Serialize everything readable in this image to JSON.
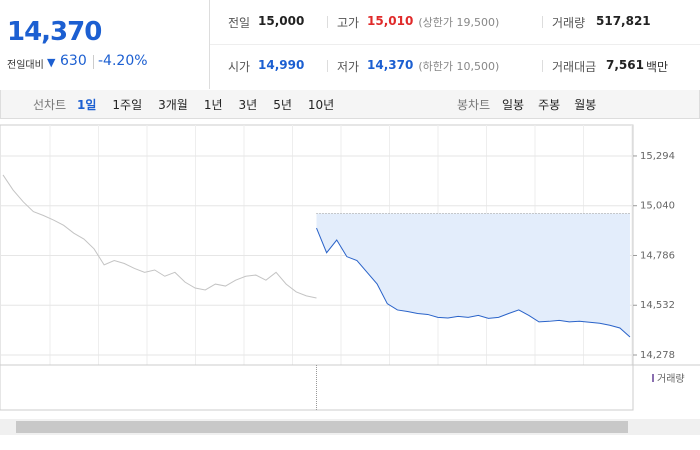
{
  "header": {
    "price": "14,370",
    "change_label": "전일대비",
    "change": "630",
    "change_rate": "-4.20%"
  },
  "summary": [
    {
      "label": "전일",
      "value": "15,000",
      "color": "#222"
    },
    {
      "label": "고가",
      "value": "15,010",
      "note": "(상한가 19,500)",
      "color": "#e02a2a"
    },
    {
      "label": "거래량",
      "value": "517,821",
      "color": "#222"
    },
    {
      "label": "시가",
      "value": "14,990",
      "color": "#1c5fd1"
    },
    {
      "label": "저가",
      "value": "14,370",
      "note": "(하한가 10,500)",
      "color": "#1c5fd1"
    },
    {
      "label": "거래대금",
      "value": "7,561",
      "unit": "백만",
      "color": "#222"
    }
  ],
  "tabs": {
    "line_label": "선차트",
    "line": [
      "1일",
      "1주일",
      "3개월",
      "1년",
      "3년",
      "5년",
      "10년"
    ],
    "selected": 0,
    "candle_label": "봉차트",
    "candle": [
      "일봉",
      "주봉",
      "월봉"
    ]
  },
  "chart_data": {
    "type": "line",
    "series": [
      {
        "color": "#c4c4c4",
        "values": [
          15197,
          15120,
          15060,
          15010,
          14990,
          14967,
          14940,
          14900,
          14870,
          14820,
          14738,
          14760,
          14745,
          14720,
          14700,
          14712,
          14680,
          14700,
          14650,
          14620,
          14610,
          14640,
          14630,
          14660,
          14680,
          14686,
          14660,
          14700,
          14640,
          14600,
          14580,
          14569,
          null,
          null,
          null,
          null,
          null,
          null,
          null,
          null,
          null,
          null,
          null,
          null,
          null,
          null,
          null,
          null,
          null,
          null,
          null,
          null,
          null,
          null,
          null,
          null,
          null,
          null,
          null,
          null,
          null,
          null,
          null
        ]
      },
      {
        "color": "#2a63c9",
        "area_color": "#e3edfb",
        "values": [
          null,
          null,
          null,
          null,
          null,
          null,
          null,
          null,
          null,
          null,
          null,
          null,
          null,
          null,
          null,
          null,
          null,
          null,
          null,
          null,
          null,
          null,
          null,
          null,
          null,
          null,
          null,
          null,
          null,
          null,
          null,
          14926,
          14800,
          14865,
          14780,
          14760,
          14700,
          14640,
          14540,
          14508,
          14500,
          14490,
          14485,
          14470,
          14467,
          14475,
          14470,
          14480,
          14465,
          14470,
          14490,
          14508,
          14480,
          14447,
          14450,
          14455,
          14447,
          14450,
          14445,
          14440,
          14430,
          14416,
          14370
        ]
      }
    ],
    "baseline": 15000,
    "ylim": [
      14227,
      15452
    ],
    "yticks": [
      {
        "value": 15294,
        "label": "15,294"
      },
      {
        "value": 15040,
        "label": "15,040"
      },
      {
        "value": 14786,
        "label": "14,786"
      },
      {
        "value": 14532,
        "label": "14,532"
      },
      {
        "value": 14278,
        "label": "14,278"
      }
    ],
    "grid": true,
    "volume_label": "거래량"
  }
}
